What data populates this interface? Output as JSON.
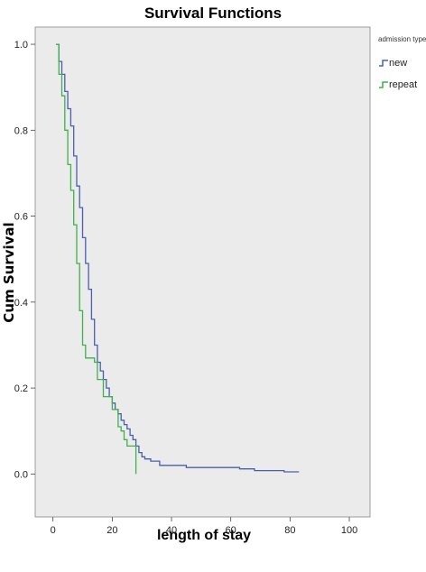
{
  "chart_data": {
    "type": "line",
    "title": "Survival Functions",
    "xlabel": "length of stay",
    "ylabel": "Cum Survival",
    "xlim": [
      -6,
      107
    ],
    "ylim": [
      -0.1,
      1.04
    ],
    "x_ticks": [
      0,
      20,
      40,
      60,
      80,
      100
    ],
    "x_tick_labels": [
      "0",
      "20",
      "40",
      "60",
      "80",
      "100"
    ],
    "y_ticks": [
      0.0,
      0.2,
      0.4,
      0.6,
      0.8,
      1.0
    ],
    "y_tick_labels": [
      "0.0",
      "0.2",
      "0.4",
      "0.6",
      "0.8",
      "1.0"
    ],
    "grid": false,
    "legend": {
      "title": "admission type",
      "placement": "top-right outside"
    },
    "series": [
      {
        "name": "new",
        "color": "#4a5fb0",
        "step": true,
        "points": [
          [
            1,
            1.0
          ],
          [
            2,
            0.96
          ],
          [
            3,
            0.93
          ],
          [
            4,
            0.89
          ],
          [
            5,
            0.85
          ],
          [
            6,
            0.81
          ],
          [
            7,
            0.74
          ],
          [
            8,
            0.67
          ],
          [
            9,
            0.62
          ],
          [
            10,
            0.55
          ],
          [
            11,
            0.49
          ],
          [
            12,
            0.43
          ],
          [
            13,
            0.36
          ],
          [
            14,
            0.3
          ],
          [
            15,
            0.26
          ],
          [
            16,
            0.24
          ],
          [
            17,
            0.22
          ],
          [
            18,
            0.2
          ],
          [
            19,
            0.18
          ],
          [
            20,
            0.165
          ],
          [
            21,
            0.15
          ],
          [
            22,
            0.14
          ],
          [
            23,
            0.125
          ],
          [
            24,
            0.115
          ],
          [
            25,
            0.105
          ],
          [
            26,
            0.09
          ],
          [
            27,
            0.08
          ],
          [
            28,
            0.065
          ],
          [
            29,
            0.05
          ],
          [
            30,
            0.04
          ],
          [
            31,
            0.035
          ],
          [
            33,
            0.03
          ],
          [
            36,
            0.02
          ],
          [
            45,
            0.015
          ],
          [
            63,
            0.012
          ],
          [
            68,
            0.008
          ],
          [
            78,
            0.005
          ],
          [
            83,
            0.005
          ]
        ]
      },
      {
        "name": "repeat",
        "color": "#3fb24a",
        "step": true,
        "points": [
          [
            1,
            1.0
          ],
          [
            2,
            0.93
          ],
          [
            3,
            0.88
          ],
          [
            4,
            0.8
          ],
          [
            5,
            0.72
          ],
          [
            6,
            0.66
          ],
          [
            7,
            0.58
          ],
          [
            8,
            0.49
          ],
          [
            9,
            0.38
          ],
          [
            10,
            0.3
          ],
          [
            11,
            0.27
          ],
          [
            14,
            0.26
          ],
          [
            15,
            0.22
          ],
          [
            17,
            0.18
          ],
          [
            20,
            0.15
          ],
          [
            22,
            0.11
          ],
          [
            23,
            0.1
          ],
          [
            24,
            0.08
          ],
          [
            25,
            0.065
          ],
          [
            28,
            0.04
          ],
          [
            28,
            0.0
          ]
        ]
      }
    ]
  }
}
